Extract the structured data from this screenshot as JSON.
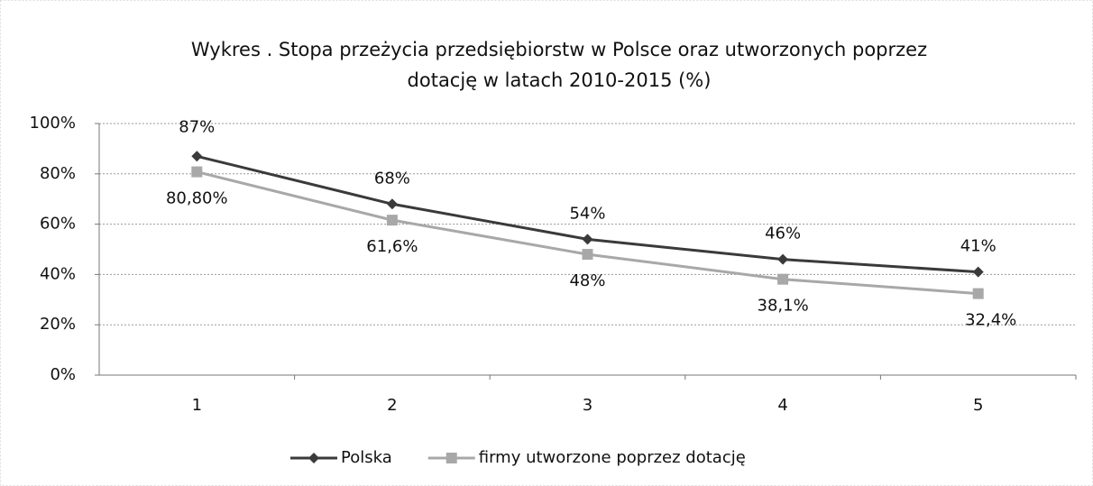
{
  "chart_data": {
    "type": "line",
    "title": [
      "Wykres . Stopa przeżycia przedsiębiorstw w Polsce oraz utworzonych poprzez",
      "dotację w latach 2010-2015 (%)"
    ],
    "categories": [
      "1",
      "2",
      "3",
      "4",
      "5"
    ],
    "series": [
      {
        "name": "Polska",
        "color": "#3a3a3a",
        "marker": "diamond",
        "values": [
          87,
          68,
          54,
          46,
          41
        ],
        "value_labels": [
          "87%",
          "68%",
          "54%",
          "46%",
          "41%"
        ]
      },
      {
        "name": "firmy utworzone poprzez dotację",
        "color": "#a8a8a8",
        "marker": "square",
        "values": [
          80.8,
          61.6,
          48,
          38.1,
          32.4
        ],
        "value_labels": [
          "80,80%",
          "61,6%",
          "48%",
          "38,1%",
          "32,4%"
        ]
      }
    ],
    "ylim": [
      0,
      100
    ],
    "yticks": [
      {
        "value": 0,
        "label": "0%"
      },
      {
        "value": 20,
        "label": "20%"
      },
      {
        "value": 40,
        "label": "40%"
      },
      {
        "value": 60,
        "label": "60%"
      },
      {
        "value": 80,
        "label": "80%"
      },
      {
        "value": 100,
        "label": "100%"
      }
    ],
    "grid": true,
    "legend": "bottom"
  }
}
